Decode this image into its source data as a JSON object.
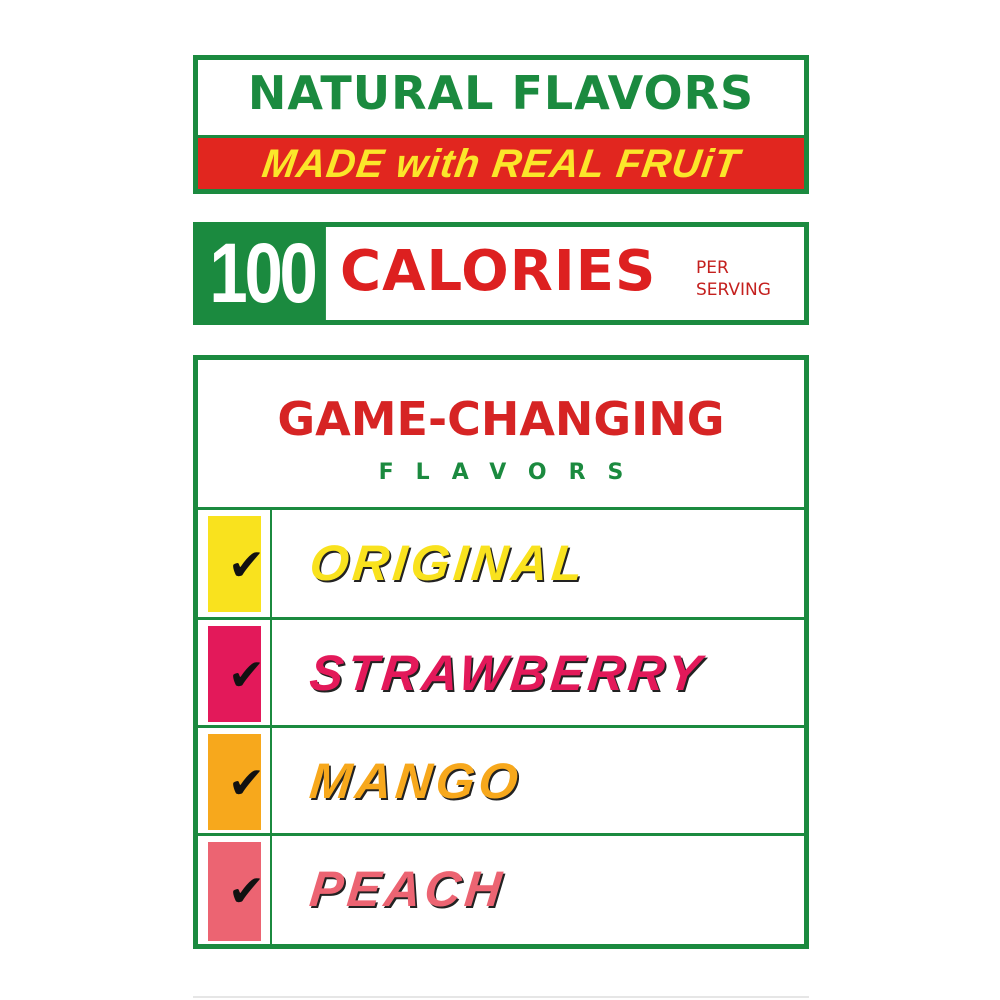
{
  "natural": {
    "title": "NATURAL FLAVORS",
    "subtitle": "MADE with REAL FRUiT"
  },
  "calories": {
    "number": "100",
    "label": "CALORIES",
    "per": "PER",
    "serving": "SERVING"
  },
  "flavors": {
    "heading": "GAME-CHANGING",
    "subheading": "FLAVORS",
    "items": [
      {
        "name": "ORIGINAL",
        "color": "#f9e21e"
      },
      {
        "name": "STRAWBERRY",
        "color": "#e3195a"
      },
      {
        "name": "MANGO",
        "color": "#f7a81c"
      },
      {
        "name": "PEACH",
        "color": "#ec6472"
      }
    ]
  },
  "colors": {
    "green": "#1b8a3f",
    "red": "#e1261f",
    "yellow": "#fbe62a"
  }
}
